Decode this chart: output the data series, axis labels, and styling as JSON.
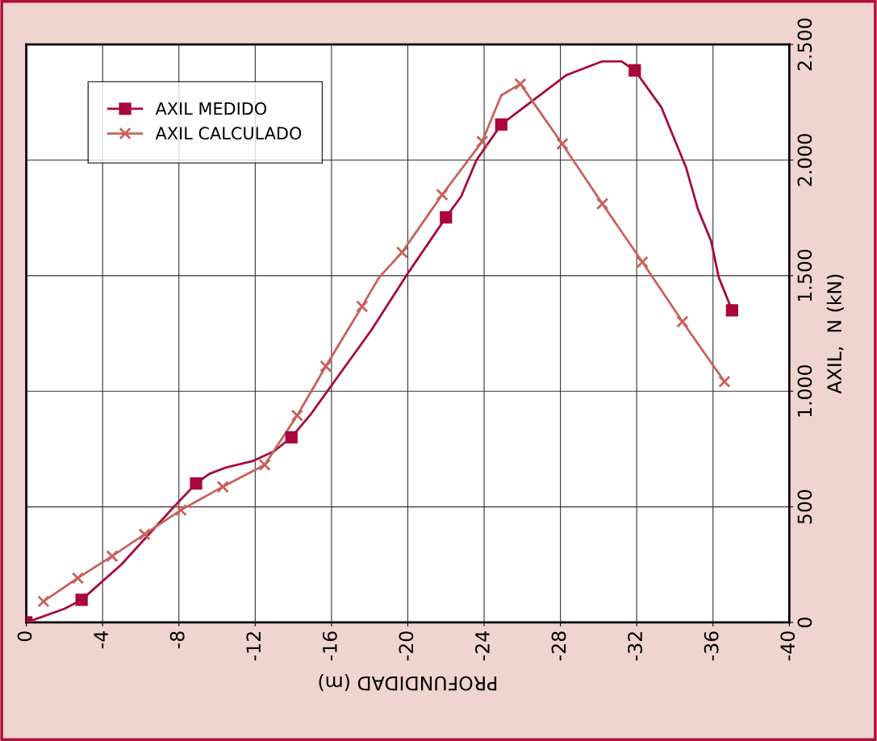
{
  "chart_data": {
    "type": "line",
    "xlabel": "PROFUNDIDAD (m)",
    "ylabel": "AXIL,  N (kN)",
    "xlim": [
      0,
      -40
    ],
    "xticks": [
      0,
      -4,
      -8,
      -12,
      -16,
      -20,
      -24,
      -28,
      -32,
      -36,
      -40
    ],
    "ylim": [
      0,
      2500
    ],
    "yticks": [
      0,
      500,
      {
        "value": 1000,
        "label": "1.000"
      },
      {
        "value": 1500,
        "label": "1.500"
      },
      {
        "value": 2000,
        "label": "2.000"
      },
      {
        "value": 2500,
        "label": "2.500"
      }
    ],
    "grid": true,
    "legend": "top left",
    "series": [
      {
        "color": "#a8083a",
        "marker": "none",
        "x": [
          0,
          -2.0,
          -2.9,
          -5.0,
          -7.7,
          -8.9,
          -9.6,
          -10.5,
          -11.9,
          -13.0,
          -13.9,
          -14.9,
          -18.1,
          -20.0,
          -22.0,
          -22.8,
          -23.6,
          -24.9,
          -28.3,
          -30.2,
          -31.2,
          -31.9,
          -33.3,
          -34.6,
          -35.2,
          -35.9,
          -36.3,
          -37.0
        ],
        "values": [
          0,
          59,
          98,
          252,
          497,
          601,
          643,
          671,
          699,
          741,
          801,
          899,
          1266,
          1510,
          1752,
          1843,
          2000,
          2154,
          2367,
          2427,
          2427,
          2388,
          2227,
          1965,
          1790,
          1650,
          1493,
          1350
        ]
      },
      {
        "type": "scatter",
        "name": "AXIL MEDIDO",
        "color": "#a8083a",
        "marker": "square",
        "x": [
          0,
          -2.9,
          -8.9,
          -13.9,
          -22.0,
          -24.9,
          -31.9,
          -37.0
        ],
        "values": [
          0,
          98,
          601,
          801,
          1752,
          2154,
          2388,
          1350
        ]
      },
      {
        "color": "#c8605a",
        "marker": "none",
        "x": [
          -0.9,
          -2.7,
          -4.5,
          -6.2,
          -8.1,
          -10.3,
          -12.5,
          -14.2,
          -15.7,
          -17.6,
          -18.5,
          -19.7,
          -21.8,
          -23.9,
          -24.9,
          -25.9,
          -28.1,
          -30.2,
          -32.3,
          -34.4,
          -36.6
        ],
        "values": [
          91,
          192,
          287,
          381,
          486,
          587,
          682,
          895,
          1108,
          1367,
          1493,
          1601,
          1850,
          2080,
          2280,
          2329,
          2070,
          1811,
          1559,
          1301,
          1042
        ]
      },
      {
        "type": "scatter",
        "name": "AXIL CALCULADO",
        "color": "#c8605a",
        "marker": "cross",
        "x": [
          -0.9,
          -2.7,
          -4.5,
          -6.2,
          -8.1,
          -10.3,
          -12.5,
          -14.2,
          -15.7,
          -17.6,
          -19.7,
          -21.8,
          -23.9,
          -25.9,
          -28.1,
          -30.2,
          -32.3,
          -34.4,
          -36.6
        ],
        "values": [
          91,
          192,
          287,
          381,
          486,
          587,
          682,
          895,
          1108,
          1367,
          1601,
          1850,
          2080,
          2329,
          2070,
          1811,
          1559,
          1301,
          1042
        ]
      }
    ]
  }
}
